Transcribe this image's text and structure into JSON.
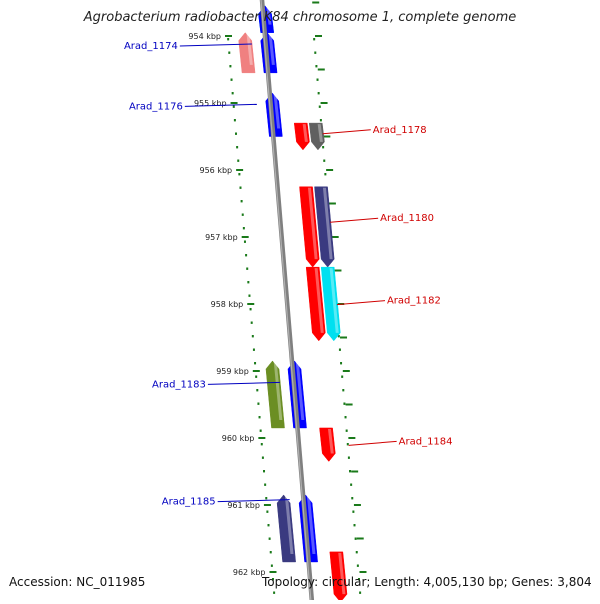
{
  "title": "Agrobacterium radiobacter K84 chromosome 1, complete genome",
  "footer": {
    "accession": "Accession: NC_011985",
    "stats": "Topology: circular; Length: 4,005,130 bp; Genes: 3,804"
  },
  "colors": {
    "backbone": "#808080",
    "dots": "#1a7a1a",
    "reverse_label": "#0000c0",
    "forward_label": "#d00000"
  },
  "ticks": [
    {
      "label": "954 kbp",
      "kbp": 954
    },
    {
      "label": "955 kbp",
      "kbp": 955
    },
    {
      "label": "956 kbp",
      "kbp": 956
    },
    {
      "label": "957 kbp",
      "kbp": 957
    },
    {
      "label": "958 kbp",
      "kbp": 958
    },
    {
      "label": "959 kbp",
      "kbp": 959
    },
    {
      "label": "960 kbp",
      "kbp": 960
    },
    {
      "label": "961 kbp",
      "kbp": 961
    },
    {
      "label": "962 kbp",
      "kbp": 962
    }
  ],
  "genes": [
    {
      "strand": "reverse",
      "lane": 2,
      "start_kbp": 953.55,
      "end_kbp": 953.95,
      "color": "#00e0ff"
    },
    {
      "strand": "reverse",
      "lane": 2,
      "start_kbp": 953.55,
      "end_kbp": 953.95,
      "color": "#0000ff"
    },
    {
      "strand": "reverse",
      "lane": 1,
      "start_kbp": 953.95,
      "end_kbp": 954.55,
      "color": "#f08080"
    },
    {
      "strand": "reverse",
      "lane": 2,
      "start_kbp": 953.95,
      "end_kbp": 954.55,
      "color": "#0000ff"
    },
    {
      "strand": "reverse",
      "lane": 2,
      "start_kbp": 954.85,
      "end_kbp": 955.5,
      "color": "#0000ff"
    },
    {
      "strand": "forward",
      "lane": 1,
      "start_kbp": 955.3,
      "end_kbp": 955.7,
      "color": "#ff0000"
    },
    {
      "strand": "forward",
      "lane": 2,
      "start_kbp": 955.3,
      "end_kbp": 955.7,
      "color": "#606060"
    },
    {
      "strand": "forward",
      "lane": 1,
      "start_kbp": 956.25,
      "end_kbp": 957.45,
      "color": "#ff0000"
    },
    {
      "strand": "forward",
      "lane": 2,
      "start_kbp": 956.25,
      "end_kbp": 957.45,
      "color": "#3a3a80"
    },
    {
      "strand": "forward",
      "lane": 1,
      "start_kbp": 957.45,
      "end_kbp": 958.55,
      "color": "#ff0000"
    },
    {
      "strand": "forward",
      "lane": 2,
      "start_kbp": 957.45,
      "end_kbp": 958.55,
      "color": "#00e0f0"
    },
    {
      "strand": "reverse",
      "lane": 1,
      "start_kbp": 958.85,
      "end_kbp": 959.85,
      "color": "#6b8e23"
    },
    {
      "strand": "reverse",
      "lane": 2,
      "start_kbp": 958.85,
      "end_kbp": 959.85,
      "color": "#0000ff"
    },
    {
      "strand": "forward",
      "lane": 1,
      "start_kbp": 959.85,
      "end_kbp": 960.35,
      "color": "#ff0000"
    },
    {
      "strand": "reverse",
      "lane": 1,
      "start_kbp": 960.85,
      "end_kbp": 961.85,
      "color": "#3a3a80"
    },
    {
      "strand": "reverse",
      "lane": 2,
      "start_kbp": 960.85,
      "end_kbp": 961.85,
      "color": "#0000ff"
    },
    {
      "strand": "forward",
      "lane": 1,
      "start_kbp": 961.7,
      "end_kbp": 962.45,
      "color": "#ff0000"
    }
  ],
  "labels": [
    {
      "text": "Arad_1174",
      "side": "left",
      "kbp": 954.15
    },
    {
      "text": "Arad_1176",
      "side": "left",
      "kbp": 955.05
    },
    {
      "text": "Arad_1178",
      "side": "right",
      "kbp": 955.4
    },
    {
      "text": "Arad_1180",
      "side": "right",
      "kbp": 956.72
    },
    {
      "text": "Arad_1182",
      "side": "right",
      "kbp": 957.95
    },
    {
      "text": "Arad_1183",
      "side": "left",
      "kbp": 959.2
    },
    {
      "text": "Arad_1184",
      "side": "right",
      "kbp": 960.05
    },
    {
      "text": "Arad_1185",
      "side": "left",
      "kbp": 960.95
    }
  ]
}
